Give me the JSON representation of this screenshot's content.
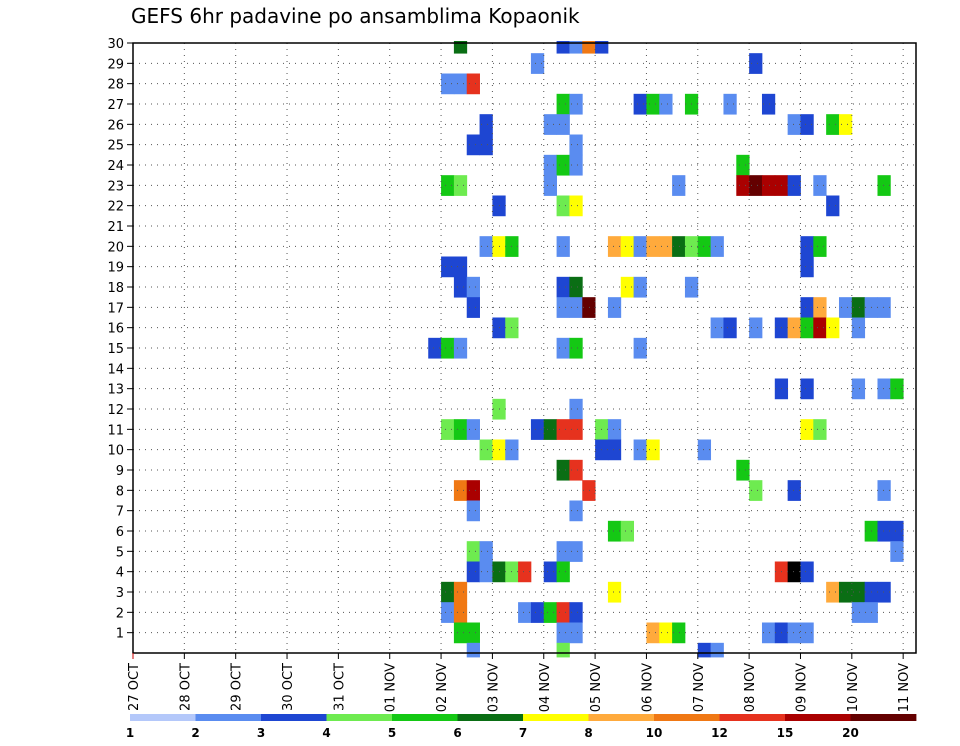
{
  "chart_data": {
    "type": "heatmap",
    "title": "GEFS 6hr padavine po ansamblima Kopaonik",
    "xlabel": "",
    "ylabel": "",
    "x_ticks": [
      "27 OCT",
      "28 OCT",
      "29 OCT",
      "30 OCT",
      "31 OCT",
      "01 NOV",
      "02 NOV",
      "03 NOV",
      "04 NOV",
      "05 NOV",
      "06 NOV",
      "07 NOV",
      "08 NOV",
      "09 NOV",
      "10 NOV",
      "11 NOV"
    ],
    "x_range_days": [
      0,
      15.25
    ],
    "y_ticks": [
      1,
      2,
      3,
      4,
      5,
      6,
      7,
      8,
      9,
      10,
      11,
      12,
      13,
      14,
      15,
      16,
      17,
      18,
      19,
      20,
      21,
      22,
      23,
      24,
      25,
      26,
      27,
      28,
      29,
      30
    ],
    "y_range": [
      0,
      30
    ],
    "time_step_hours": 6,
    "grid": "dotted",
    "colorbar": {
      "position": "bottom",
      "labels": [
        "1",
        "2",
        "3",
        "4",
        "5",
        "6",
        "7",
        "8",
        "10",
        "12",
        "15",
        "20"
      ],
      "colors": [
        "#b4c8fa",
        "#5a8cf0",
        "#1e46d2",
        "#6eeb50",
        "#14c814",
        "#0a6e14",
        "#ffff00",
        "#ffaa3c",
        "#f07814",
        "#e6321e",
        "#aa0000",
        "#640000"
      ]
    },
    "cells": [
      [
        30,
        25,
        5
      ],
      [
        30,
        33,
        2
      ],
      [
        30,
        34,
        1
      ],
      [
        30,
        35,
        8
      ],
      [
        30,
        36,
        2
      ],
      [
        29,
        31,
        1
      ],
      [
        29,
        48,
        2
      ],
      [
        28,
        24,
        1
      ],
      [
        28,
        25,
        1
      ],
      [
        28,
        26,
        9
      ],
      [
        27,
        33,
        4
      ],
      [
        27,
        34,
        1
      ],
      [
        27,
        39,
        2
      ],
      [
        27,
        40,
        4
      ],
      [
        27,
        41,
        1
      ],
      [
        27,
        43,
        4
      ],
      [
        27,
        46,
        1
      ],
      [
        27,
        49,
        2
      ],
      [
        26,
        27,
        2
      ],
      [
        26,
        32,
        1
      ],
      [
        26,
        33,
        1
      ],
      [
        26,
        51,
        1
      ],
      [
        26,
        52,
        2
      ],
      [
        26,
        54,
        4
      ],
      [
        26,
        55,
        6
      ],
      [
        25,
        26,
        2
      ],
      [
        25,
        27,
        2
      ],
      [
        25,
        34,
        1
      ],
      [
        24,
        32,
        1
      ],
      [
        24,
        33,
        4
      ],
      [
        24,
        34,
        1
      ],
      [
        24,
        47,
        4
      ],
      [
        23,
        24,
        4
      ],
      [
        23,
        25,
        3
      ],
      [
        23,
        32,
        1
      ],
      [
        23,
        42,
        1
      ],
      [
        23,
        47,
        10
      ],
      [
        23,
        48,
        11
      ],
      [
        23,
        49,
        10
      ],
      [
        23,
        50,
        10
      ],
      [
        23,
        51,
        2
      ],
      [
        23,
        53,
        1
      ],
      [
        23,
        58,
        4
      ],
      [
        22,
        28,
        2
      ],
      [
        22,
        33,
        3
      ],
      [
        22,
        34,
        6
      ],
      [
        22,
        54,
        2
      ],
      [
        20,
        27,
        1
      ],
      [
        20,
        28,
        6
      ],
      [
        20,
        29,
        4
      ],
      [
        20,
        33,
        1
      ],
      [
        20,
        37,
        7
      ],
      [
        20,
        38,
        6
      ],
      [
        20,
        39,
        1
      ],
      [
        20,
        40,
        7
      ],
      [
        20,
        41,
        7
      ],
      [
        20,
        42,
        5
      ],
      [
        20,
        43,
        3
      ],
      [
        20,
        44,
        4
      ],
      [
        20,
        45,
        1
      ],
      [
        20,
        52,
        2
      ],
      [
        20,
        53,
        4
      ],
      [
        19,
        24,
        2
      ],
      [
        19,
        25,
        2
      ],
      [
        19,
        52,
        2
      ],
      [
        18,
        25,
        2
      ],
      [
        18,
        26,
        1
      ],
      [
        18,
        33,
        2
      ],
      [
        18,
        34,
        5
      ],
      [
        18,
        38,
        6
      ],
      [
        18,
        39,
        1
      ],
      [
        18,
        43,
        1
      ],
      [
        17,
        26,
        2
      ],
      [
        17,
        33,
        1
      ],
      [
        17,
        34,
        1
      ],
      [
        17,
        35,
        11
      ],
      [
        17,
        37,
        1
      ],
      [
        17,
        52,
        2
      ],
      [
        17,
        53,
        7
      ],
      [
        17,
        55,
        1
      ],
      [
        17,
        56,
        5
      ],
      [
        17,
        57,
        1
      ],
      [
        17,
        58,
        1
      ],
      [
        16,
        28,
        2
      ],
      [
        16,
        29,
        3
      ],
      [
        16,
        45,
        1
      ],
      [
        16,
        46,
        2
      ],
      [
        16,
        48,
        1
      ],
      [
        16,
        50,
        2
      ],
      [
        16,
        51,
        7
      ],
      [
        16,
        52,
        4
      ],
      [
        16,
        53,
        10
      ],
      [
        16,
        54,
        6
      ],
      [
        16,
        56,
        1
      ],
      [
        15,
        23,
        2
      ],
      [
        15,
        24,
        4
      ],
      [
        15,
        25,
        1
      ],
      [
        15,
        33,
        1
      ],
      [
        15,
        34,
        4
      ],
      [
        15,
        39,
        1
      ],
      [
        13,
        50,
        2
      ],
      [
        13,
        52,
        2
      ],
      [
        13,
        56,
        1
      ],
      [
        13,
        58,
        1
      ],
      [
        13,
        59,
        4
      ],
      [
        12,
        28,
        3
      ],
      [
        12,
        34,
        1
      ],
      [
        11,
        24,
        3
      ],
      [
        11,
        25,
        4
      ],
      [
        11,
        26,
        1
      ],
      [
        11,
        31,
        2
      ],
      [
        11,
        32,
        5
      ],
      [
        11,
        33,
        9
      ],
      [
        11,
        34,
        9
      ],
      [
        11,
        36,
        3
      ],
      [
        11,
        37,
        1
      ],
      [
        11,
        52,
        6
      ],
      [
        11,
        53,
        3
      ],
      [
        10,
        27,
        3
      ],
      [
        10,
        28,
        6
      ],
      [
        10,
        29,
        1
      ],
      [
        10,
        36,
        2
      ],
      [
        10,
        37,
        2
      ],
      [
        10,
        39,
        1
      ],
      [
        10,
        40,
        6
      ],
      [
        10,
        44,
        1
      ],
      [
        9,
        33,
        5
      ],
      [
        9,
        34,
        9
      ],
      [
        9,
        47,
        4
      ],
      [
        8,
        25,
        8
      ],
      [
        8,
        26,
        10
      ],
      [
        8,
        35,
        9
      ],
      [
        8,
        48,
        3
      ],
      [
        8,
        51,
        2
      ],
      [
        8,
        58,
        1
      ],
      [
        7,
        26,
        1
      ],
      [
        7,
        34,
        1
      ],
      [
        6,
        37,
        4
      ],
      [
        6,
        38,
        3
      ],
      [
        6,
        57,
        4
      ],
      [
        6,
        58,
        2
      ],
      [
        6,
        59,
        2
      ],
      [
        5,
        26,
        3
      ],
      [
        5,
        27,
        1
      ],
      [
        5,
        33,
        1
      ],
      [
        5,
        34,
        1
      ],
      [
        5,
        59,
        1
      ],
      [
        4,
        26,
        2
      ],
      [
        4,
        27,
        1
      ],
      [
        4,
        28,
        5
      ],
      [
        4,
        29,
        3
      ],
      [
        4,
        30,
        9
      ],
      [
        4,
        32,
        2
      ],
      [
        4,
        33,
        4
      ],
      [
        4,
        50,
        9
      ],
      [
        4,
        51,
        12
      ],
      [
        4,
        52,
        2
      ],
      [
        3,
        24,
        5
      ],
      [
        3,
        25,
        8
      ],
      [
        3,
        37,
        6
      ],
      [
        3,
        54,
        7
      ],
      [
        3,
        55,
        5
      ],
      [
        3,
        56,
        5
      ],
      [
        3,
        57,
        2
      ],
      [
        3,
        58,
        2
      ],
      [
        2,
        24,
        1
      ],
      [
        2,
        25,
        8
      ],
      [
        2,
        30,
        1
      ],
      [
        2,
        31,
        2
      ],
      [
        2,
        32,
        4
      ],
      [
        2,
        33,
        9
      ],
      [
        2,
        34,
        2
      ],
      [
        2,
        56,
        1
      ],
      [
        2,
        57,
        1
      ],
      [
        1,
        25,
        4
      ],
      [
        1,
        26,
        4
      ],
      [
        1,
        33,
        1
      ],
      [
        1,
        34,
        1
      ],
      [
        1,
        40,
        7
      ],
      [
        1,
        41,
        6
      ],
      [
        1,
        42,
        4
      ],
      [
        1,
        49,
        1
      ],
      [
        1,
        50,
        2
      ],
      [
        1,
        51,
        1
      ],
      [
        1,
        52,
        1
      ],
      [
        0,
        26,
        1
      ],
      [
        0,
        33,
        3
      ],
      [
        0,
        44,
        2
      ],
      [
        0,
        45,
        1
      ]
    ]
  }
}
